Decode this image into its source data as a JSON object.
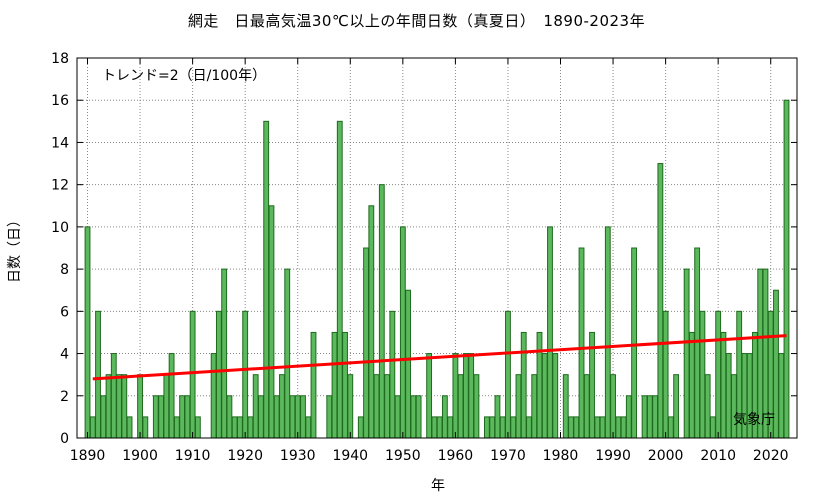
{
  "chart_data": {
    "type": "bar",
    "title": "網走　日最高気温30℃以上の年間日数（真夏日）　1890-2023年",
    "xlabel": "年",
    "ylabel": "日数（日）",
    "annotation": "トレンド=2（日/100年）",
    "source": "気象庁",
    "xlim": [
      1888,
      2025
    ],
    "ylim": [
      0,
      18
    ],
    "x_ticks": [
      1890,
      1900,
      1910,
      1920,
      1930,
      1940,
      1950,
      1960,
      1970,
      1980,
      1990,
      2000,
      2010,
      2020
    ],
    "y_ticks": [
      0,
      2,
      4,
      6,
      8,
      10,
      12,
      14,
      16,
      18
    ],
    "grid": true,
    "bar_color": "#5cb85c",
    "bar_edge_color": "#1e6b1e",
    "trend_color": "#ff0000",
    "trend": {
      "x": [
        1891,
        2023
      ],
      "y": [
        2.8,
        4.85
      ]
    },
    "x": [
      1890,
      1891,
      1892,
      1893,
      1894,
      1895,
      1896,
      1897,
      1898,
      1899,
      1900,
      1901,
      1902,
      1903,
      1904,
      1905,
      1906,
      1907,
      1908,
      1909,
      1910,
      1911,
      1912,
      1913,
      1914,
      1915,
      1916,
      1917,
      1918,
      1919,
      1920,
      1921,
      1922,
      1923,
      1924,
      1925,
      1926,
      1927,
      1928,
      1929,
      1930,
      1931,
      1932,
      1933,
      1934,
      1935,
      1936,
      1937,
      1938,
      1939,
      1940,
      1941,
      1942,
      1943,
      1944,
      1945,
      1946,
      1947,
      1948,
      1949,
      1950,
      1951,
      1952,
      1953,
      1954,
      1955,
      1956,
      1957,
      1958,
      1959,
      1960,
      1961,
      1962,
      1963,
      1964,
      1965,
      1966,
      1967,
      1968,
      1969,
      1970,
      1971,
      1972,
      1973,
      1974,
      1975,
      1976,
      1977,
      1978,
      1979,
      1980,
      1981,
      1982,
      1983,
      1984,
      1985,
      1986,
      1987,
      1988,
      1989,
      1990,
      1991,
      1992,
      1993,
      1994,
      1995,
      1996,
      1997,
      1998,
      1999,
      2000,
      2001,
      2002,
      2003,
      2004,
      2005,
      2006,
      2007,
      2008,
      2009,
      2010,
      2011,
      2012,
      2013,
      2014,
      2015,
      2016,
      2017,
      2018,
      2019,
      2020,
      2021,
      2022,
      2023
    ],
    "values": [
      10,
      1,
      6,
      2,
      3,
      4,
      3,
      3,
      1,
      0,
      3,
      1,
      0,
      2,
      2,
      3,
      4,
      1,
      2,
      2,
      6,
      1,
      0,
      0,
      4,
      6,
      8,
      2,
      1,
      1,
      6,
      1,
      3,
      2,
      15,
      11,
      2,
      3,
      8,
      2,
      2,
      2,
      1,
      5,
      0,
      0,
      2,
      5,
      15,
      5,
      3,
      0,
      1,
      9,
      11,
      3,
      12,
      3,
      6,
      2,
      10,
      7,
      2,
      2,
      0,
      4,
      1,
      1,
      2,
      1,
      4,
      3,
      4,
      4,
      3,
      0,
      1,
      1,
      2,
      1,
      6,
      1,
      3,
      5,
      1,
      3,
      5,
      4,
      10,
      4,
      0,
      3,
      1,
      1,
      9,
      3,
      5,
      1,
      1,
      10,
      3,
      1,
      1,
      2,
      9,
      0,
      2,
      2,
      2,
      13,
      6,
      1,
      3,
      0,
      8,
      5,
      9,
      6,
      3,
      1,
      6,
      5,
      4,
      3,
      6,
      4,
      4,
      5,
      8,
      8,
      6,
      7,
      4,
      16
    ]
  }
}
